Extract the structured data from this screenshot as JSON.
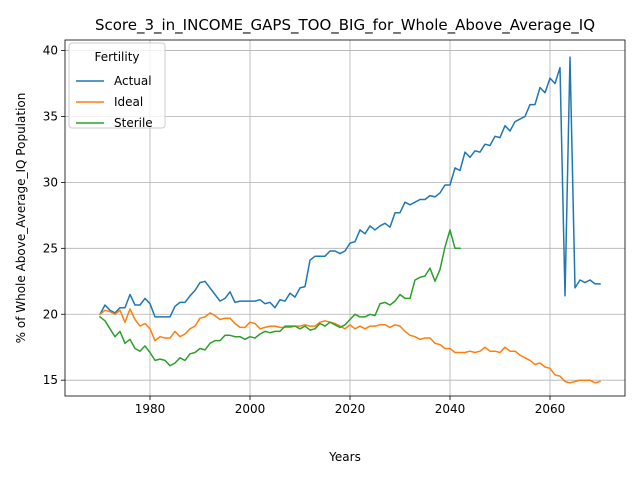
{
  "chart_data": {
    "type": "line",
    "title": "Score_3_in_INCOME_GAPS_TOO_BIG_for_Whole_Above_Average_IQ",
    "xlabel": "Years",
    "ylabel": "% of Whole Above_Average_IQ Population",
    "xlim": [
      1963,
      2075
    ],
    "ylim": [
      13.8,
      40.8
    ],
    "xticks": [
      1980,
      2000,
      2020,
      2040,
      2060
    ],
    "yticks": [
      15,
      20,
      25,
      30,
      35,
      40
    ],
    "grid": true,
    "legend": {
      "title": "Fertility",
      "placement": "top-left"
    },
    "series": [
      {
        "name": "Actual",
        "color": "#1f77b4",
        "x": [
          1970,
          1971,
          1972,
          1973,
          1974,
          1975,
          1976,
          1977,
          1978,
          1979,
          1980,
          1981,
          1982,
          1983,
          1984,
          1985,
          1986,
          1987,
          1988,
          1989,
          1990,
          1991,
          1992,
          1993,
          1994,
          1995,
          1996,
          1997,
          1998,
          1999,
          2000,
          2001,
          2002,
          2003,
          2004,
          2005,
          2006,
          2007,
          2008,
          2009,
          2010,
          2011,
          2012,
          2013,
          2014,
          2015,
          2016,
          2017,
          2018,
          2019,
          2020,
          2021,
          2022,
          2023,
          2024,
          2025,
          2026,
          2027,
          2028,
          2029,
          2030,
          2031,
          2032,
          2033,
          2034,
          2035,
          2036,
          2037,
          2038,
          2039,
          2040,
          2041,
          2042,
          2043,
          2044,
          2045,
          2046,
          2047,
          2048,
          2049,
          2050,
          2051,
          2052,
          2053,
          2054,
          2055,
          2056,
          2057,
          2058,
          2059,
          2060,
          2061,
          2062,
          2063,
          2064,
          2065,
          2066,
          2067,
          2068,
          2069,
          2070
        ],
        "y": [
          20.0,
          20.7,
          20.3,
          20.1,
          20.5,
          20.5,
          21.5,
          20.7,
          20.7,
          21.2,
          20.8,
          19.8,
          19.8,
          19.8,
          19.8,
          20.6,
          20.9,
          20.9,
          21.4,
          21.8,
          22.4,
          22.5,
          22.0,
          21.5,
          21.0,
          21.2,
          21.7,
          20.9,
          21.0,
          21.0,
          21.0,
          21.0,
          21.1,
          20.8,
          20.9,
          20.5,
          21.1,
          21.0,
          21.6,
          21.3,
          22.0,
          22.1,
          24.1,
          24.4,
          24.4,
          24.4,
          24.8,
          24.8,
          24.6,
          24.8,
          25.4,
          25.5,
          26.4,
          26.1,
          26.7,
          26.4,
          26.7,
          26.9,
          26.6,
          27.7,
          27.7,
          28.5,
          28.3,
          28.5,
          28.7,
          28.7,
          29.0,
          28.9,
          29.2,
          29.8,
          29.8,
          31.1,
          30.9,
          32.3,
          31.9,
          32.4,
          32.3,
          32.9,
          32.8,
          33.5,
          33.4,
          34.3,
          33.9,
          34.6,
          34.8,
          35.0,
          35.9,
          35.9,
          37.2,
          36.8,
          37.9,
          37.5,
          38.7,
          21.4,
          39.5,
          22.0,
          22.6,
          22.4,
          22.6,
          22.3,
          22.3
        ]
      },
      {
        "name": "Ideal",
        "color": "#ff7f0e",
        "x": [
          1970,
          1971,
          1972,
          1973,
          1974,
          1975,
          1976,
          1977,
          1978,
          1979,
          1980,
          1981,
          1982,
          1983,
          1984,
          1985,
          1986,
          1987,
          1988,
          1989,
          1990,
          1991,
          1992,
          1993,
          1994,
          1995,
          1996,
          1997,
          1998,
          1999,
          2000,
          2001,
          2002,
          2003,
          2004,
          2005,
          2006,
          2007,
          2008,
          2009,
          2010,
          2011,
          2012,
          2013,
          2014,
          2015,
          2016,
          2017,
          2018,
          2019,
          2020,
          2021,
          2022,
          2023,
          2024,
          2025,
          2026,
          2027,
          2028,
          2029,
          2030,
          2031,
          2032,
          2033,
          2034,
          2035,
          2036,
          2037,
          2038,
          2039,
          2040,
          2041,
          2042,
          2043,
          2044,
          2045,
          2046,
          2047,
          2048,
          2049,
          2050,
          2051,
          2052,
          2053,
          2054,
          2055,
          2056,
          2057,
          2058,
          2059,
          2060,
          2061,
          2062,
          2063,
          2064,
          2065,
          2066,
          2067,
          2068,
          2069,
          2070
        ],
        "y": [
          20.0,
          20.3,
          20.2,
          20.0,
          20.3,
          19.4,
          20.4,
          19.6,
          19.1,
          19.3,
          18.9,
          18.0,
          18.3,
          18.2,
          18.2,
          18.7,
          18.3,
          18.5,
          18.9,
          19.1,
          19.7,
          19.8,
          20.1,
          19.9,
          19.6,
          19.7,
          19.7,
          19.3,
          19.0,
          19.0,
          19.4,
          19.3,
          18.9,
          19.0,
          19.1,
          19.1,
          19.0,
          19.0,
          19.0,
          19.1,
          19.1,
          19.2,
          19.1,
          19.1,
          19.4,
          19.5,
          19.4,
          19.3,
          19.1,
          18.9,
          19.2,
          18.9,
          19.1,
          18.9,
          19.1,
          19.1,
          19.2,
          19.2,
          19.0,
          19.2,
          19.1,
          18.7,
          18.4,
          18.3,
          18.1,
          18.2,
          18.2,
          17.8,
          17.7,
          17.4,
          17.4,
          17.1,
          17.1,
          17.1,
          17.2,
          17.1,
          17.2,
          17.5,
          17.2,
          17.2,
          17.1,
          17.5,
          17.2,
          17.2,
          16.9,
          16.7,
          16.5,
          16.2,
          16.3,
          16.0,
          15.9,
          15.4,
          15.3,
          14.9,
          14.8,
          14.9,
          15.0,
          15.0,
          15.0,
          14.8,
          14.9
        ]
      },
      {
        "name": "Sterile",
        "color": "#2ca02c",
        "x": [
          1970,
          1971,
          1972,
          1973,
          1974,
          1975,
          1976,
          1977,
          1978,
          1979,
          1980,
          1981,
          1982,
          1983,
          1984,
          1985,
          1986,
          1987,
          1988,
          1989,
          1990,
          1991,
          1992,
          1993,
          1994,
          1995,
          1996,
          1997,
          1998,
          1999,
          2000,
          2001,
          2002,
          2003,
          2004,
          2005,
          2006,
          2007,
          2008,
          2009,
          2010,
          2011,
          2012,
          2013,
          2014,
          2015,
          2016,
          2017,
          2018,
          2019,
          2020,
          2021,
          2022,
          2023,
          2024,
          2025,
          2026,
          2027,
          2028,
          2029,
          2030,
          2031,
          2032,
          2033,
          2034,
          2035,
          2036,
          2037,
          2038,
          2039,
          2040,
          2041,
          2042
        ],
        "y": [
          19.8,
          19.5,
          18.9,
          18.3,
          18.7,
          17.8,
          18.1,
          17.4,
          17.2,
          17.6,
          17.1,
          16.5,
          16.6,
          16.5,
          16.1,
          16.3,
          16.7,
          16.5,
          17.0,
          17.1,
          17.4,
          17.3,
          17.8,
          18.0,
          18.0,
          18.4,
          18.4,
          18.3,
          18.3,
          18.1,
          18.3,
          18.2,
          18.5,
          18.7,
          18.6,
          18.7,
          18.7,
          19.1,
          19.1,
          19.1,
          18.9,
          19.1,
          18.8,
          18.9,
          19.3,
          19.1,
          19.4,
          19.2,
          19.0,
          19.2,
          19.6,
          20.0,
          19.8,
          19.8,
          20.0,
          19.9,
          20.8,
          20.9,
          20.7,
          21.0,
          21.5,
          21.2,
          21.2,
          22.6,
          22.8,
          22.9,
          23.5,
          22.5,
          23.4,
          25.1,
          26.4,
          25.0,
          25.0
        ]
      }
    ]
  }
}
